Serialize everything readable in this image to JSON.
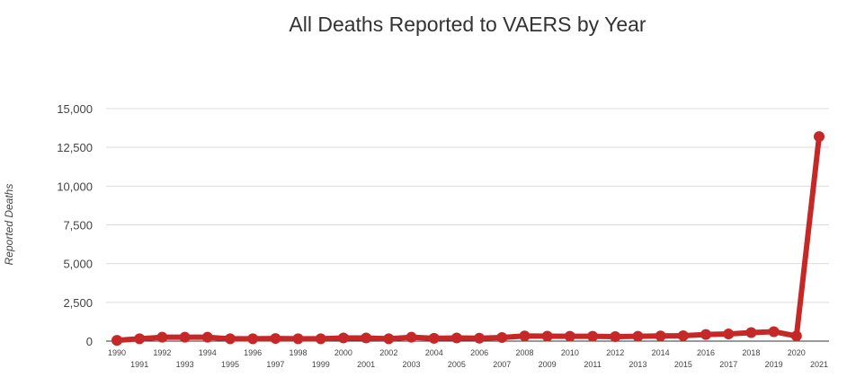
{
  "chart_data": {
    "type": "line",
    "title": "All Deaths Reported to VAERS by Year",
    "xlabel": "",
    "ylabel": "Reported Deaths",
    "ylim": [
      0,
      15000
    ],
    "yticks": [
      0,
      2500,
      5000,
      7500,
      10000,
      12500,
      15000
    ],
    "ytick_labels": [
      "0",
      "2,500",
      "5,000",
      "7,500",
      "10,000",
      "12,500",
      "15,000"
    ],
    "grid": true,
    "legend": "none",
    "line_color": "#c62828",
    "categories": [
      "1990",
      "1991",
      "1992",
      "1993",
      "1994",
      "1995",
      "1996",
      "1997",
      "1998",
      "1999",
      "2000",
      "2001",
      "2002",
      "2003",
      "2004",
      "2005",
      "2006",
      "2007",
      "2008",
      "2009",
      "2010",
      "2011",
      "2012",
      "2013",
      "2014",
      "2015",
      "2016",
      "2017",
      "2018",
      "2019",
      "2020",
      "2021"
    ],
    "series": [
      {
        "name": "Reported Deaths",
        "values": [
          50,
          150,
          250,
          250,
          250,
          150,
          150,
          170,
          150,
          150,
          200,
          200,
          150,
          250,
          180,
          200,
          190,
          230,
          330,
          320,
          310,
          310,
          290,
          310,
          330,
          350,
          430,
          460,
          550,
          610,
          330,
          13200
        ]
      }
    ]
  }
}
